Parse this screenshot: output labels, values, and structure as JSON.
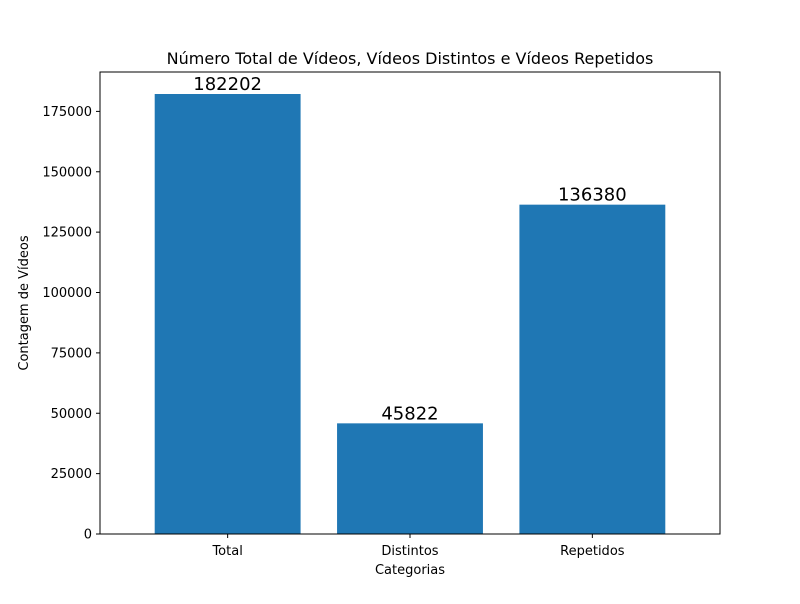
{
  "chart_data": {
    "type": "bar",
    "title": "Número Total de Vídeos, Vídeos Distintos e Vídeos Repetidos",
    "xlabel": "Categorias",
    "ylabel": "Contagem de Vídeos",
    "categories": [
      "Total",
      "Distintos",
      "Repetidos"
    ],
    "values": [
      182202,
      45822,
      136380
    ],
    "data_labels": [
      "182202",
      "45822",
      "136380"
    ],
    "ylim": [
      0,
      191312
    ],
    "yticks": [
      0,
      25000,
      50000,
      75000,
      100000,
      125000,
      150000,
      175000
    ],
    "ytick_labels": [
      "0",
      "25000",
      "50000",
      "75000",
      "100000",
      "125000",
      "150000",
      "175000"
    ],
    "bar_color": "#1f77b4",
    "grid": false,
    "legend": "none"
  }
}
